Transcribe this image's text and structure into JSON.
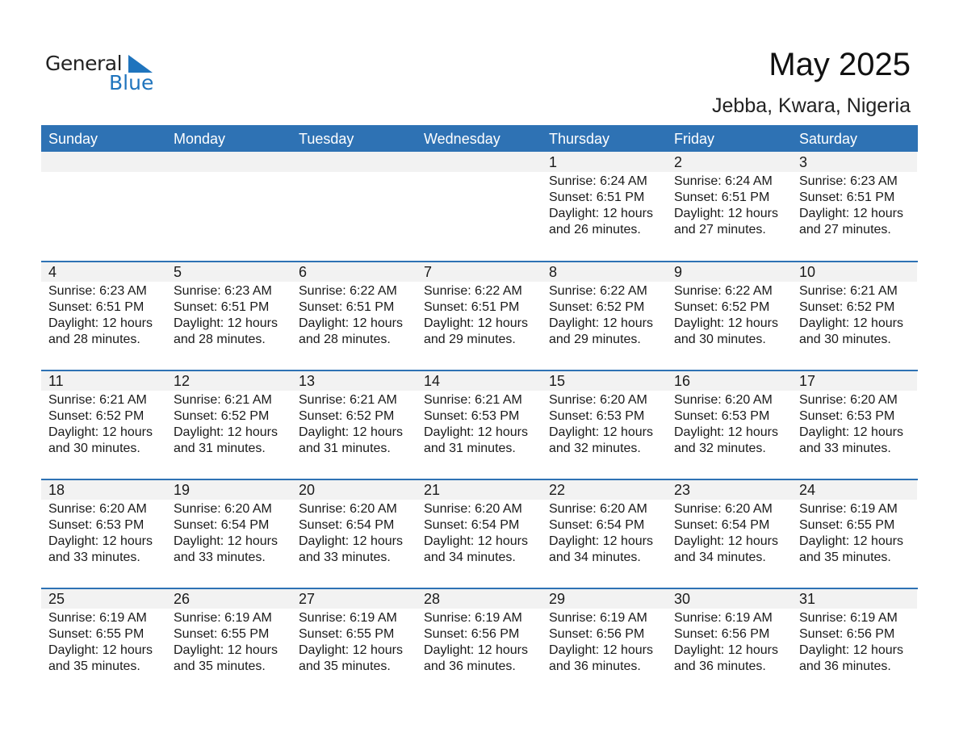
{
  "logo": {
    "text_general": "General",
    "text_blue": "Blue",
    "brand_color": "#1f74bd"
  },
  "header": {
    "title": "May 2025",
    "location": "Jebba, Kwara, Nigeria"
  },
  "weekdays": [
    "Sunday",
    "Monday",
    "Tuesday",
    "Wednesday",
    "Thursday",
    "Friday",
    "Saturday"
  ],
  "first_weekday_offset": 4,
  "labels": {
    "sunrise": "Sunrise:",
    "sunset": "Sunset:",
    "daylight": "Daylight:"
  },
  "days": [
    {
      "day": "1",
      "sunrise": "6:24 AM",
      "sunset": "6:51 PM",
      "daylight": [
        "12 hours",
        "and 26 minutes."
      ]
    },
    {
      "day": "2",
      "sunrise": "6:24 AM",
      "sunset": "6:51 PM",
      "daylight": [
        "12 hours",
        "and 27 minutes."
      ]
    },
    {
      "day": "3",
      "sunrise": "6:23 AM",
      "sunset": "6:51 PM",
      "daylight": [
        "12 hours",
        "and 27 minutes."
      ]
    },
    {
      "day": "4",
      "sunrise": "6:23 AM",
      "sunset": "6:51 PM",
      "daylight": [
        "12 hours",
        "and 28 minutes."
      ]
    },
    {
      "day": "5",
      "sunrise": "6:23 AM",
      "sunset": "6:51 PM",
      "daylight": [
        "12 hours",
        "and 28 minutes."
      ]
    },
    {
      "day": "6",
      "sunrise": "6:22 AM",
      "sunset": "6:51 PM",
      "daylight": [
        "12 hours",
        "and 28 minutes."
      ]
    },
    {
      "day": "7",
      "sunrise": "6:22 AM",
      "sunset": "6:51 PM",
      "daylight": [
        "12 hours",
        "and 29 minutes."
      ]
    },
    {
      "day": "8",
      "sunrise": "6:22 AM",
      "sunset": "6:52 PM",
      "daylight": [
        "12 hours",
        "and 29 minutes."
      ]
    },
    {
      "day": "9",
      "sunrise": "6:22 AM",
      "sunset": "6:52 PM",
      "daylight": [
        "12 hours",
        "and 30 minutes."
      ]
    },
    {
      "day": "10",
      "sunrise": "6:21 AM",
      "sunset": "6:52 PM",
      "daylight": [
        "12 hours",
        "and 30 minutes."
      ]
    },
    {
      "day": "11",
      "sunrise": "6:21 AM",
      "sunset": "6:52 PM",
      "daylight": [
        "12 hours",
        "and 30 minutes."
      ]
    },
    {
      "day": "12",
      "sunrise": "6:21 AM",
      "sunset": "6:52 PM",
      "daylight": [
        "12 hours",
        "and 31 minutes."
      ]
    },
    {
      "day": "13",
      "sunrise": "6:21 AM",
      "sunset": "6:52 PM",
      "daylight": [
        "12 hours",
        "and 31 minutes."
      ]
    },
    {
      "day": "14",
      "sunrise": "6:21 AM",
      "sunset": "6:53 PM",
      "daylight": [
        "12 hours",
        "and 31 minutes."
      ]
    },
    {
      "day": "15",
      "sunrise": "6:20 AM",
      "sunset": "6:53 PM",
      "daylight": [
        "12 hours",
        "and 32 minutes."
      ]
    },
    {
      "day": "16",
      "sunrise": "6:20 AM",
      "sunset": "6:53 PM",
      "daylight": [
        "12 hours",
        "and 32 minutes."
      ]
    },
    {
      "day": "17",
      "sunrise": "6:20 AM",
      "sunset": "6:53 PM",
      "daylight": [
        "12 hours",
        "and 33 minutes."
      ]
    },
    {
      "day": "18",
      "sunrise": "6:20 AM",
      "sunset": "6:53 PM",
      "daylight": [
        "12 hours",
        "and 33 minutes."
      ]
    },
    {
      "day": "19",
      "sunrise": "6:20 AM",
      "sunset": "6:54 PM",
      "daylight": [
        "12 hours",
        "and 33 minutes."
      ]
    },
    {
      "day": "20",
      "sunrise": "6:20 AM",
      "sunset": "6:54 PM",
      "daylight": [
        "12 hours",
        "and 33 minutes."
      ]
    },
    {
      "day": "21",
      "sunrise": "6:20 AM",
      "sunset": "6:54 PM",
      "daylight": [
        "12 hours",
        "and 34 minutes."
      ]
    },
    {
      "day": "22",
      "sunrise": "6:20 AM",
      "sunset": "6:54 PM",
      "daylight": [
        "12 hours",
        "and 34 minutes."
      ]
    },
    {
      "day": "23",
      "sunrise": "6:20 AM",
      "sunset": "6:54 PM",
      "daylight": [
        "12 hours",
        "and 34 minutes."
      ]
    },
    {
      "day": "24",
      "sunrise": "6:19 AM",
      "sunset": "6:55 PM",
      "daylight": [
        "12 hours",
        "and 35 minutes."
      ]
    },
    {
      "day": "25",
      "sunrise": "6:19 AM",
      "sunset": "6:55 PM",
      "daylight": [
        "12 hours",
        "and 35 minutes."
      ]
    },
    {
      "day": "26",
      "sunrise": "6:19 AM",
      "sunset": "6:55 PM",
      "daylight": [
        "12 hours",
        "and 35 minutes."
      ]
    },
    {
      "day": "27",
      "sunrise": "6:19 AM",
      "sunset": "6:55 PM",
      "daylight": [
        "12 hours",
        "and 35 minutes."
      ]
    },
    {
      "day": "28",
      "sunrise": "6:19 AM",
      "sunset": "6:56 PM",
      "daylight": [
        "12 hours",
        "and 36 minutes."
      ]
    },
    {
      "day": "29",
      "sunrise": "6:19 AM",
      "sunset": "6:56 PM",
      "daylight": [
        "12 hours",
        "and 36 minutes."
      ]
    },
    {
      "day": "30",
      "sunrise": "6:19 AM",
      "sunset": "6:56 PM",
      "daylight": [
        "12 hours",
        "and 36 minutes."
      ]
    },
    {
      "day": "31",
      "sunrise": "6:19 AM",
      "sunset": "6:56 PM",
      "daylight": [
        "12 hours",
        "and 36 minutes."
      ]
    }
  ]
}
